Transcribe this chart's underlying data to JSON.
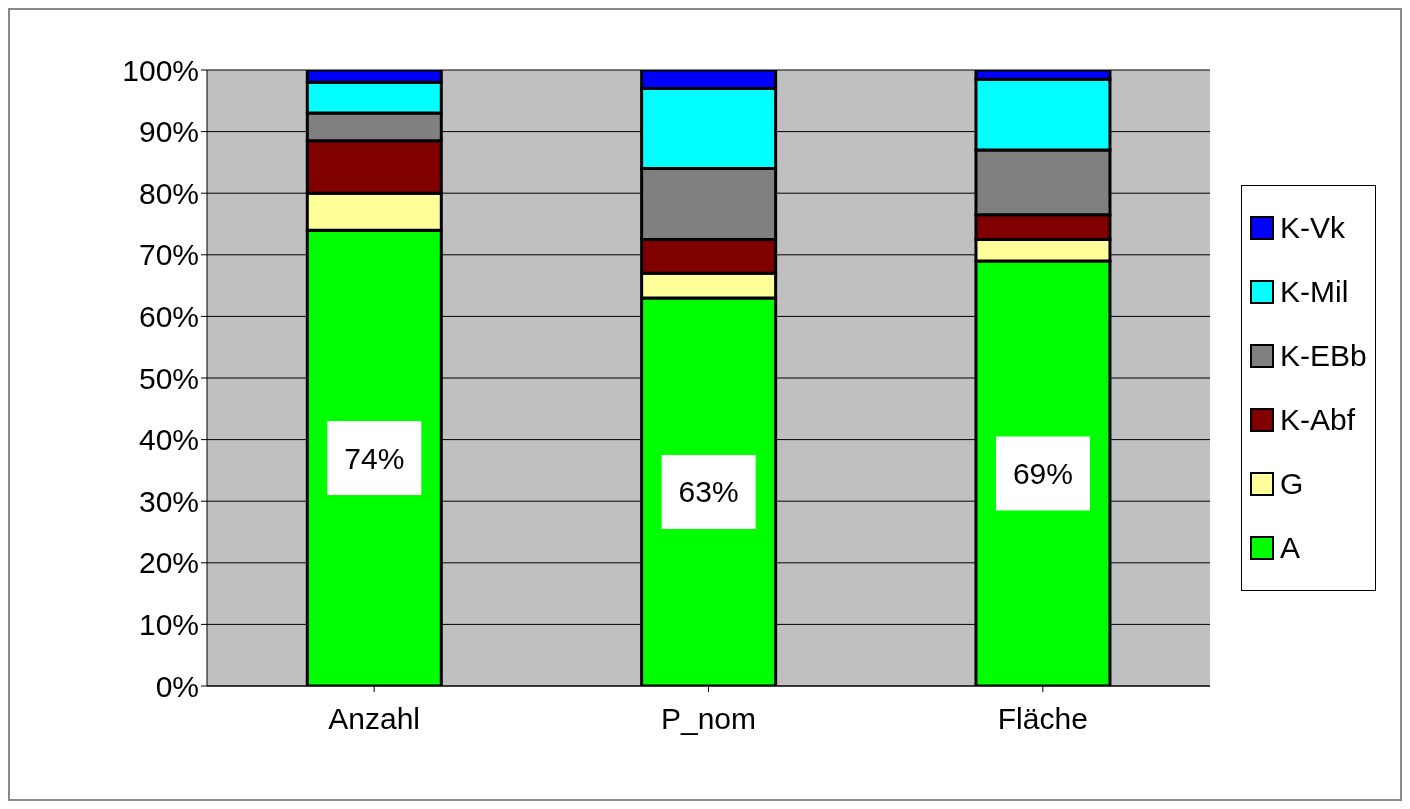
{
  "chart_data": {
    "type": "bar",
    "stacked": true,
    "categories": [
      "Anzahl",
      "P_nom",
      "Fläche"
    ],
    "series": [
      {
        "name": "A",
        "color": "#00ff00",
        "values": [
          74,
          63,
          69
        ],
        "value_labels": [
          "74%",
          "63%",
          "69%"
        ]
      },
      {
        "name": "G",
        "color": "#ffff99",
        "values": [
          6,
          4,
          3.5
        ]
      },
      {
        "name": "K-Abf",
        "color": "#800000",
        "values": [
          8.5,
          5.5,
          4
        ]
      },
      {
        "name": "K-EBb",
        "color": "#808080",
        "values": [
          4.5,
          11.5,
          10.5
        ]
      },
      {
        "name": "K-Mil",
        "color": "#00ffff",
        "values": [
          5,
          13,
          11.5
        ]
      },
      {
        "name": "K-Vk",
        "color": "#0000ff",
        "values": [
          2,
          3,
          1.5
        ]
      }
    ],
    "ylim": [
      0,
      100
    ],
    "yticks": [
      {
        "value": 0,
        "label": "0%"
      },
      {
        "value": 10,
        "label": "10%"
      },
      {
        "value": 20,
        "label": "20%"
      },
      {
        "value": 30,
        "label": "30%"
      },
      {
        "value": 40,
        "label": "40%"
      },
      {
        "value": 50,
        "label": "50%"
      },
      {
        "value": 60,
        "label": "60%"
      },
      {
        "value": 70,
        "label": "70%"
      },
      {
        "value": 80,
        "label": "80%"
      },
      {
        "value": 90,
        "label": "90%"
      },
      {
        "value": 100,
        "label": "100%"
      }
    ],
    "grid": "y",
    "legend": "right"
  }
}
